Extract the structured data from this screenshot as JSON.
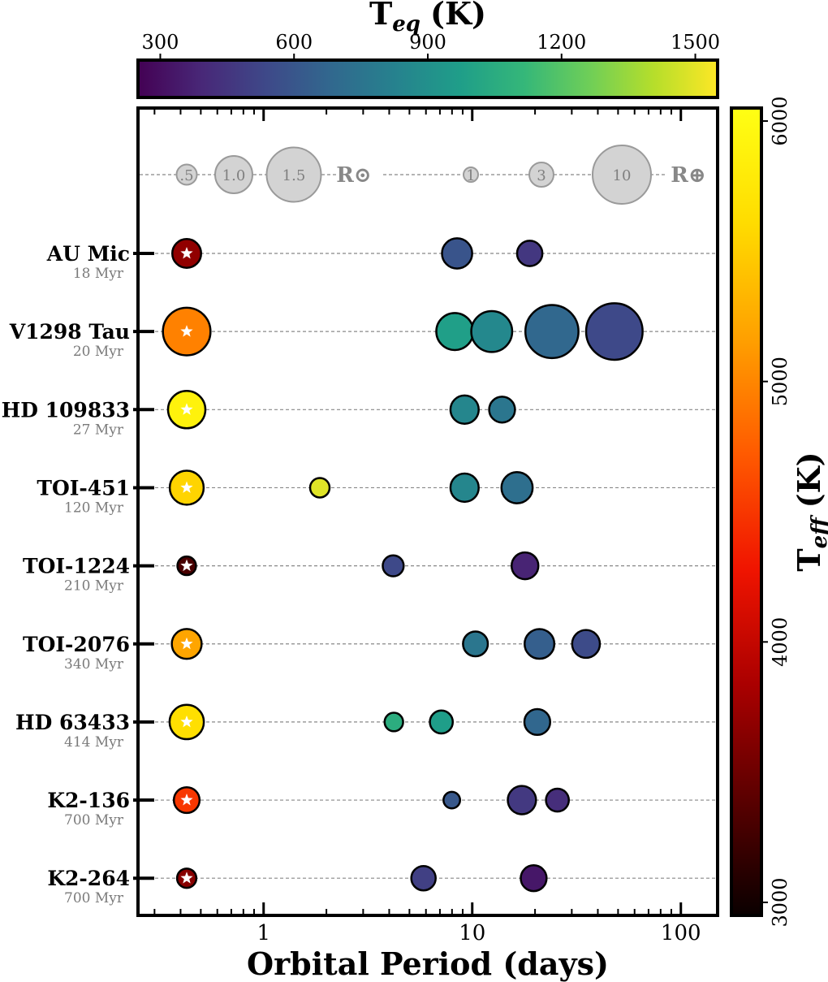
{
  "chart_data": {
    "type": "scatter",
    "xlabel": "Orbital Period (days)",
    "xscale": "log",
    "xlim": [
      0.25,
      150
    ],
    "xticks": [
      {
        "value": 1,
        "label": "1"
      },
      {
        "value": 10,
        "label": "10"
      },
      {
        "value": 100,
        "label": "100"
      }
    ],
    "grid": false,
    "teq_colorbar": {
      "label_main": "T",
      "label_sub": "eq",
      "label_unit": "(K)",
      "range": [
        250,
        1550
      ],
      "ticks": [
        {
          "value": 300,
          "label": "300"
        },
        {
          "value": 600,
          "label": "600"
        },
        {
          "value": 900,
          "label": "900"
        },
        {
          "value": 1200,
          "label": "1200"
        },
        {
          "value": 1500,
          "label": "1500"
        }
      ],
      "colormap": "viridis"
    },
    "teff_colorbar": {
      "label_main": "T",
      "label_sub": "eff",
      "label_unit": "(K)",
      "range": [
        2950,
        6050
      ],
      "ticks": [
        {
          "value": 3000,
          "label": "3000"
        },
        {
          "value": 4000,
          "label": "4000"
        },
        {
          "value": 5000,
          "label": "5000"
        },
        {
          "value": 6000,
          "label": "6000"
        }
      ],
      "colormap": "hot"
    },
    "size_legend": {
      "stellar": {
        "labels": [
          ".5",
          "1.0",
          "1.5"
        ],
        "values": [
          0.5,
          1.0,
          1.5
        ],
        "unit": "R⊙"
      },
      "planet": {
        "labels": [
          "1",
          "3",
          "10"
        ],
        "values": [
          1,
          3,
          10
        ],
        "unit": "R⊕"
      }
    },
    "systems": [
      {
        "name": "AU Mic",
        "age": "18 Myr",
        "star_teff": 3700,
        "star_radius": 0.75,
        "planets": [
          {
            "period": 8.46,
            "radius": 4.2,
            "teq": 590
          },
          {
            "period": 18.86,
            "radius": 3.2,
            "teq": 460
          }
        ]
      },
      {
        "name": "V1298 Tau",
        "age": "20 Myr",
        "star_teff": 4970,
        "star_radius": 1.3,
        "planets": [
          {
            "period": 8.25,
            "radius": 5.6,
            "teq": 980
          },
          {
            "period": 12.4,
            "radius": 6.4,
            "teq": 860
          },
          {
            "period": 24.1,
            "radius": 8.9,
            "teq": 685
          },
          {
            "period": 48.0,
            "radius": 9.6,
            "teq": 540
          }
        ]
      },
      {
        "name": "HD 109833",
        "age": "27 Myr",
        "star_teff": 5880,
        "star_radius": 1.0,
        "planets": [
          {
            "period": 9.19,
            "radius": 3.8,
            "teq": 850
          },
          {
            "period": 13.9,
            "radius": 3.3,
            "teq": 760
          }
        ]
      },
      {
        "name": "TOI-451",
        "age": "120 Myr",
        "star_teff": 5550,
        "star_radius": 0.9,
        "planets": [
          {
            "period": 1.86,
            "radius": 2.0,
            "teq": 1490
          },
          {
            "period": 9.19,
            "radius": 3.8,
            "teq": 850
          },
          {
            "period": 16.4,
            "radius": 4.4,
            "teq": 720
          }
        ]
      },
      {
        "name": "TOI-1224",
        "age": "210 Myr",
        "star_teff": 3300,
        "star_radius": 0.45,
        "planets": [
          {
            "period": 4.18,
            "radius": 2.3,
            "teq": 540
          },
          {
            "period": 17.9,
            "radius": 3.5,
            "teq": 380
          }
        ]
      },
      {
        "name": "TOI-2076",
        "age": "340 Myr",
        "star_teff": 5200,
        "star_radius": 0.78,
        "planets": [
          {
            "period": 10.36,
            "radius": 3.1,
            "teq": 760
          },
          {
            "period": 21.0,
            "radius": 4.1,
            "teq": 640
          },
          {
            "period": 35.1,
            "radius": 3.7,
            "teq": 550
          }
        ]
      },
      {
        "name": "HD 63433",
        "age": "414 Myr",
        "star_teff": 5640,
        "star_radius": 0.91,
        "planets": [
          {
            "period": 4.21,
            "radius": 1.8,
            "teq": 1060
          },
          {
            "period": 7.11,
            "radius": 2.7,
            "teq": 970
          },
          {
            "period": 20.5,
            "radius": 3.3,
            "teq": 680
          }
        ]
      },
      {
        "name": "K2-136",
        "age": "700 Myr",
        "star_teff": 4500,
        "star_radius": 0.66,
        "planets": [
          {
            "period": 7.98,
            "radius": 1.4,
            "teq": 610
          },
          {
            "period": 17.3,
            "radius": 3.8,
            "teq": 470
          },
          {
            "period": 25.6,
            "radius": 2.7,
            "teq": 420
          }
        ]
      },
      {
        "name": "K2-264",
        "age": "700 Myr",
        "star_teff": 3650,
        "star_radius": 0.47,
        "planets": [
          {
            "period": 5.84,
            "radius": 3.0,
            "teq": 500
          },
          {
            "period": 19.7,
            "radius": 3.3,
            "teq": 330
          }
        ]
      }
    ]
  }
}
